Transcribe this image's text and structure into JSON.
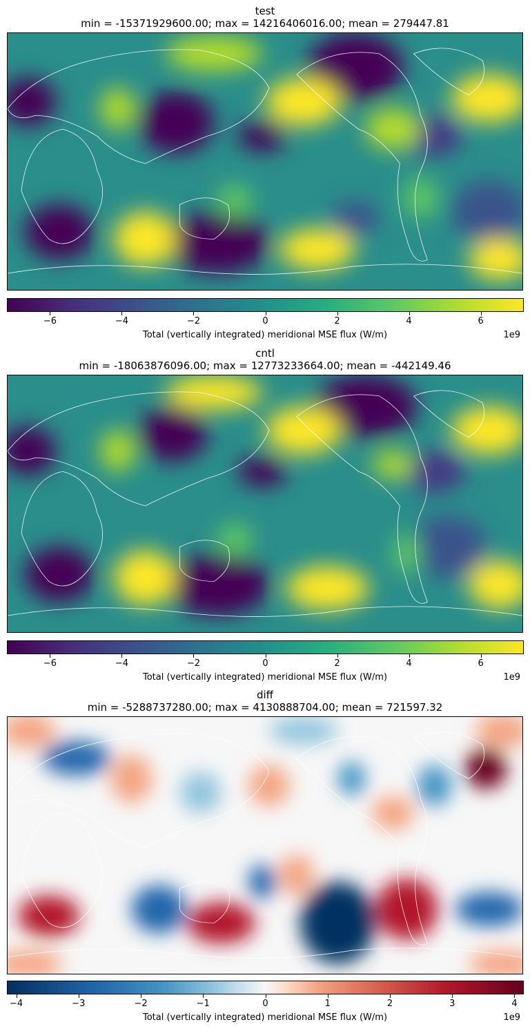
{
  "chart_data": [
    {
      "type": "heatmap",
      "title": "test",
      "subtitle": "min = -15371929600.00; max = 14216406016.00; mean = 279447.81",
      "colormap": "viridis",
      "colorbar": {
        "label": "Total (vertically integrated) meridional MSE flux (W/m)",
        "exponent": "1e9",
        "range": [
          -7.2,
          7.2
        ],
        "ticks": [
          -6,
          -4,
          -2,
          0,
          2,
          4,
          6
        ],
        "tick_labels": [
          "−6",
          "−4",
          "−2",
          "0",
          "2",
          "4",
          "6"
        ]
      },
      "stats": {
        "min": -15371929600.0,
        "max": 14216406016.0,
        "mean": 279447.81
      }
    },
    {
      "type": "heatmap",
      "title": "cntl",
      "subtitle": "min = -18063876096.00; max = 12773233664.00; mean = -442149.46",
      "colormap": "viridis",
      "colorbar": {
        "label": "Total (vertically integrated) meridional MSE flux (W/m)",
        "exponent": "1e9",
        "range": [
          -7.2,
          7.2
        ],
        "ticks": [
          -6,
          -4,
          -2,
          0,
          2,
          4,
          6
        ],
        "tick_labels": [
          "−6",
          "−4",
          "−2",
          "0",
          "2",
          "4",
          "6"
        ]
      },
      "stats": {
        "min": -18063876096.0,
        "max": 12773233664.0,
        "mean": -442149.46
      }
    },
    {
      "type": "heatmap",
      "title": "diff",
      "subtitle": "min = -5288737280.00; max = 4130888704.00; mean = 721597.32",
      "colormap": "RdBu_r",
      "colorbar": {
        "label": "Total (vertically integrated) meridional MSE flux (W/m)",
        "exponent": "1e9",
        "range": [
          -4.15,
          4.15
        ],
        "ticks": [
          -4,
          -3,
          -2,
          -1,
          0,
          1,
          2,
          3,
          4
        ],
        "tick_labels": [
          "−4",
          "−3",
          "−2",
          "−1",
          "0",
          "1",
          "2",
          "3",
          "4"
        ]
      },
      "stats": {
        "min": -5288737280.0,
        "max": 4130888704.0,
        "mean": 721597.32
      }
    }
  ],
  "colors": {
    "viridis": [
      "#440154",
      "#3b528b",
      "#21918c",
      "#5ec962",
      "#fde725"
    ],
    "rdbu_r": [
      "#053061",
      "#2166ac",
      "#92c5de",
      "#f7f7f7",
      "#f4a582",
      "#b2182b",
      "#67001f"
    ],
    "coastline": "#ffffff"
  }
}
